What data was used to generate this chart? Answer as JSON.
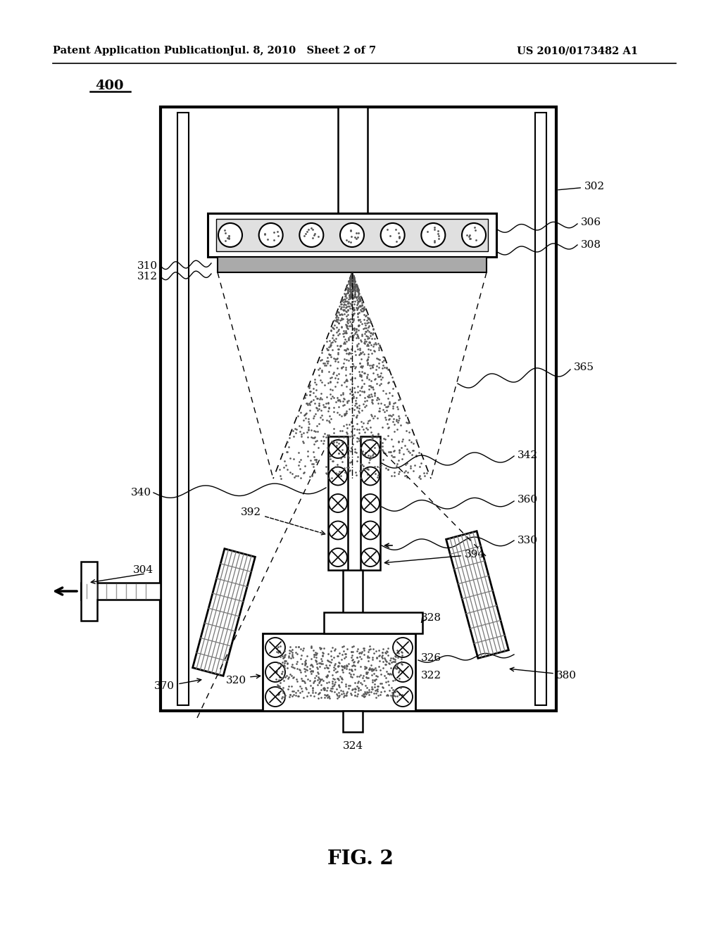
{
  "bg_color": "#ffffff",
  "line_color": "#000000",
  "header_left": "Patent Application Publication",
  "header_mid": "Jul. 8, 2010   Sheet 2 of 7",
  "header_right": "US 2010/0173482 A1",
  "fig_label": "FIG. 2",
  "main_label": "400"
}
